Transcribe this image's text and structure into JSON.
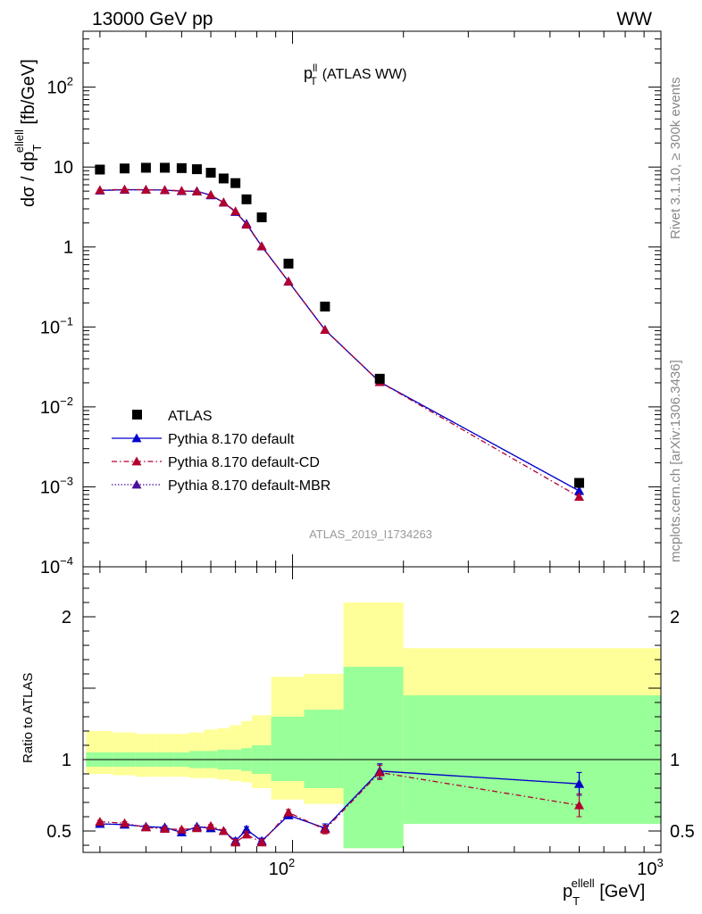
{
  "header": {
    "energy_label": "13000 GeV pp",
    "process_label": "WW",
    "side_label_top": "Rivet 3.1.10, ≥ 300k events",
    "side_label_bottom": "mcplots.cern.ch [arXiv:1306.3436]",
    "analysis_id": "ATLAS_2019_I1734263"
  },
  "colors": {
    "atlas": "#000000",
    "default": "#0000cc",
    "cd": "#b2002e",
    "mbr": "#4b0f9c",
    "band_outer": "#ffff99",
    "band_inner": "#99ff99"
  },
  "chart_data": [
    {
      "type": "line",
      "panel": "main",
      "title": "p_T^ll (ATLAS WW)",
      "title_parts": {
        "p": "p",
        "sup": "ll",
        "sub": "T",
        "rest": "(ATLAS WW)"
      },
      "ylabel_parts": {
        "a": "dσ / dp",
        "sub": "T",
        "sup": "ellell",
        "b": " [fb/GeV]"
      },
      "yscale": "log",
      "xscale": "log",
      "ylim": [
        0.0001,
        500
      ],
      "xlim": [
        27,
        1000
      ],
      "y_ticks": [
        {
          "v": 0.0001,
          "base": "10",
          "exp": "−4"
        },
        {
          "v": 0.001,
          "base": "10",
          "exp": "−3"
        },
        {
          "v": 0.01,
          "base": "10",
          "exp": "−2"
        },
        {
          "v": 0.1,
          "base": "10",
          "exp": "−1"
        },
        {
          "v": 1,
          "base": "1",
          "exp": ""
        },
        {
          "v": 10,
          "base": "10",
          "exp": ""
        },
        {
          "v": 100,
          "base": "10",
          "exp": "2"
        }
      ],
      "legend_position": "lower-left",
      "series": [
        {
          "name": "ATLAS",
          "style": "markers",
          "x": [
            30,
            35,
            40,
            45,
            50,
            55,
            60,
            65,
            70,
            75,
            82.5,
            97.5,
            122.5,
            172.5,
            600
          ],
          "values": [
            9.3,
            9.6,
            9.8,
            9.8,
            9.7,
            9.4,
            8.5,
            7.2,
            6.3,
            3.95,
            2.35,
            0.62,
            0.18,
            0.0225,
            0.00112
          ]
        },
        {
          "name": "Pythia 8.170 default",
          "style": "solid",
          "x": [
            30,
            35,
            40,
            45,
            50,
            55,
            60,
            65,
            70,
            75,
            82.5,
            97.5,
            122.5,
            172.5,
            600
          ],
          "values": [
            5.1,
            5.2,
            5.2,
            5.15,
            5.0,
            5.0,
            4.45,
            3.6,
            2.75,
            1.95,
            1.02,
            0.37,
            0.092,
            0.0205,
            0.00089
          ]
        },
        {
          "name": "Pythia 8.170 default-CD",
          "style": "dashdot",
          "x": [
            30,
            35,
            40,
            45,
            50,
            55,
            60,
            65,
            70,
            75,
            82.5,
            97.5,
            122.5,
            172.5,
            600
          ],
          "values": [
            5.15,
            5.25,
            5.2,
            5.15,
            5.05,
            4.95,
            4.5,
            3.6,
            2.8,
            1.9,
            1.02,
            0.37,
            0.092,
            0.0205,
            0.00075
          ]
        },
        {
          "name": "Pythia 8.170 default-MBR",
          "style": "dotted",
          "x": [
            30,
            35,
            40,
            45,
            50,
            55,
            60,
            65,
            70,
            75,
            82.5,
            97.5,
            122.5,
            172.5,
            600
          ],
          "values": [
            5.1,
            5.2,
            5.2,
            5.15,
            5.0,
            4.95,
            4.45,
            3.6,
            2.75,
            1.95,
            1.02,
            0.37,
            0.092,
            0.0205,
            0.00089
          ]
        }
      ]
    },
    {
      "type": "line",
      "panel": "ratio",
      "ylabel": "Ratio to ATLAS",
      "xlabel_parts": {
        "p": "p",
        "sub": "T",
        "sup": "ellell",
        "b": " [GeV]"
      },
      "xscale": "log",
      "ylim": [
        0.35,
        2.35
      ],
      "xlim": [
        27,
        1000
      ],
      "y_ticks": [
        "0.5",
        "1",
        "2"
      ],
      "x_ticks": [
        {
          "v": 100,
          "base": "10",
          "exp": "2"
        },
        {
          "v": 1000,
          "base": "10",
          "exp": "3"
        }
      ],
      "bands": {
        "edges": [
          27.5,
          32.5,
          37.5,
          42.5,
          47.5,
          52.5,
          57.5,
          62.5,
          67.5,
          72.5,
          77.5,
          87.5,
          107.5,
          137.5,
          200,
          1000
        ],
        "inner_low": [
          0.95,
          0.95,
          0.95,
          0.95,
          0.95,
          0.94,
          0.94,
          0.93,
          0.93,
          0.92,
          0.9,
          0.85,
          0.8,
          0.38,
          0.55
        ],
        "inner_high": [
          1.05,
          1.05,
          1.05,
          1.05,
          1.05,
          1.06,
          1.06,
          1.07,
          1.07,
          1.08,
          1.1,
          1.3,
          1.35,
          1.65,
          1.45
        ],
        "outer_low": [
          0.9,
          0.89,
          0.88,
          0.88,
          0.88,
          0.87,
          0.87,
          0.86,
          0.85,
          0.84,
          0.8,
          0.72,
          0.69,
          0.38,
          0.68
        ],
        "outer_high": [
          1.2,
          1.19,
          1.18,
          1.18,
          1.18,
          1.19,
          1.21,
          1.22,
          1.24,
          1.27,
          1.31,
          1.58,
          1.6,
          2.1,
          1.78
        ]
      },
      "series": [
        {
          "name": "Pythia 8.170 default",
          "style": "solid",
          "x": [
            30,
            35,
            40,
            45,
            50,
            55,
            60,
            65,
            70,
            75,
            82.5,
            97.5,
            122.5,
            172.5,
            600
          ],
          "values": [
            0.55,
            0.545,
            0.53,
            0.525,
            0.49,
            0.53,
            0.52,
            0.5,
            0.43,
            0.51,
            0.43,
            0.61,
            0.52,
            0.92,
            0.83
          ],
          "errors": [
            0.01,
            0.01,
            0.01,
            0.01,
            0.01,
            0.01,
            0.01,
            0.01,
            0.02,
            0.02,
            0.02,
            0.02,
            0.03,
            0.05,
            0.08
          ]
        },
        {
          "name": "Pythia 8.170 default-CD",
          "style": "dashdot",
          "x": [
            30,
            35,
            40,
            45,
            50,
            55,
            60,
            65,
            70,
            75,
            82.5,
            97.5,
            122.5,
            172.5,
            600
          ],
          "values": [
            0.565,
            0.555,
            0.525,
            0.515,
            0.51,
            0.52,
            0.535,
            0.5,
            0.42,
            0.475,
            0.42,
            0.63,
            0.51,
            0.91,
            0.68
          ],
          "errors": [
            0.01,
            0.01,
            0.01,
            0.01,
            0.01,
            0.01,
            0.01,
            0.01,
            0.02,
            0.02,
            0.02,
            0.02,
            0.03,
            0.05,
            0.08
          ]
        },
        {
          "name": "Pythia 8.170 default-MBR",
          "style": "dotted",
          "x": [
            30,
            35,
            40,
            45,
            50,
            55,
            60,
            65,
            70,
            75,
            82.5,
            97.5,
            122.5,
            172.5,
            600
          ],
          "values": [
            0.55,
            0.545,
            0.53,
            0.525,
            0.49,
            0.53,
            0.52,
            0.5,
            0.43,
            0.51,
            0.43,
            0.61,
            0.52,
            0.92,
            0.83
          ],
          "errors": [
            0.01,
            0.01,
            0.01,
            0.01,
            0.01,
            0.01,
            0.01,
            0.01,
            0.02,
            0.02,
            0.02,
            0.02,
            0.03,
            0.05,
            0.08
          ]
        }
      ]
    }
  ]
}
